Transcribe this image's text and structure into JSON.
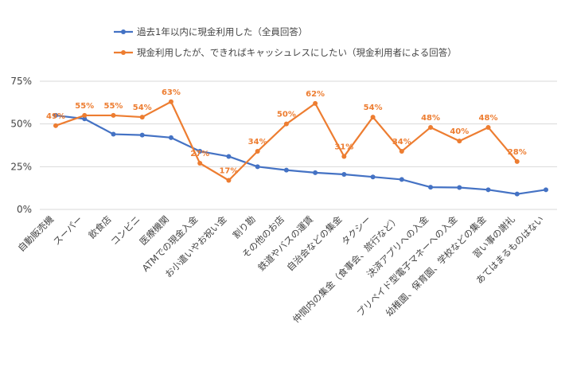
{
  "chart_data": {
    "type": "line",
    "title": "",
    "xlabel": "",
    "ylabel": "",
    "ylim": [
      0,
      75
    ],
    "yticks": [
      0,
      25,
      50,
      75
    ],
    "ytick_labels": [
      "0%",
      "25%",
      "50%",
      "75%"
    ],
    "grid": true,
    "legend_position": "top",
    "categories": [
      "自動販売機",
      "スーパー",
      "飲食店",
      "コンビニ",
      "医療機関",
      "ATMでの現金入金",
      "お小遣いやお祝い金",
      "割り勘",
      "その他のお店",
      "鉄道やバスの運賃",
      "自治会などの集金",
      "タクシー",
      "仲間内の集金（食事会、旅行など）",
      "決済アプリへの入金",
      "プリペイド型電子マネーへの入金",
      "幼稚園、保育園、学校などの集金",
      "習い事の謝礼",
      "あてはまるものはない"
    ],
    "series": [
      {
        "name": "過去1年以内に現金利用した（全員回答）",
        "color": "#4472C4",
        "values": [
          55,
          53,
          44,
          43.5,
          42,
          34,
          31,
          25,
          23,
          21.5,
          20.5,
          19,
          17.5,
          13,
          12.8,
          11.5,
          9,
          11.5
        ],
        "labels": []
      },
      {
        "name": "現金利用したが、できればキャッシュレスにしたい（現金利用者による回答）",
        "color": "#ED7D31",
        "values": [
          49,
          55,
          55,
          54,
          63,
          27,
          17,
          34,
          50,
          62,
          31,
          54,
          34,
          48,
          40,
          48,
          28,
          null
        ],
        "labels": [
          "49%",
          "55%",
          "55%",
          "54%",
          "63%",
          "27%",
          "17%",
          "34%",
          "50%",
          "62%",
          "31%",
          "54%",
          "34%",
          "48%",
          "40%",
          "48%",
          "28%",
          ""
        ]
      }
    ]
  }
}
